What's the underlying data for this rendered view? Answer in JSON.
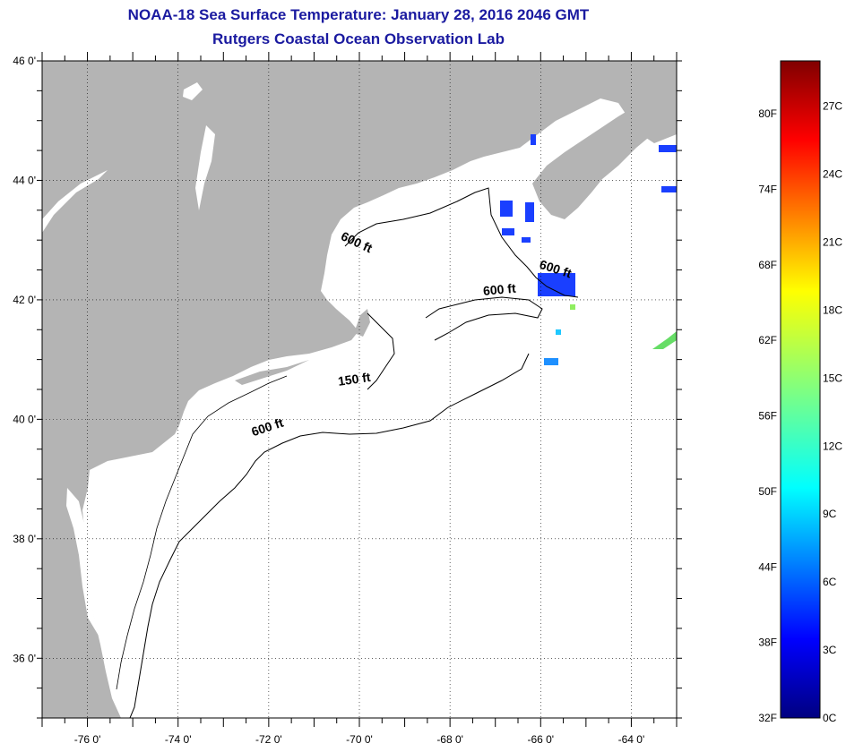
{
  "title": {
    "line1": "NOAA-18 Sea Surface Temperature:  January 28, 2016 2046 GMT",
    "line2": "Rutgers Coastal Ocean Observation Lab"
  },
  "map": {
    "lon_range": [
      -77,
      -63
    ],
    "lat_range": [
      35,
      46
    ],
    "lon_ticks": [
      {
        "value": -76,
        "label": "-76 0'"
      },
      {
        "value": -74,
        "label": "-74 0'"
      },
      {
        "value": -72,
        "label": "-72 0'"
      },
      {
        "value": -70,
        "label": "-70 0'"
      },
      {
        "value": -68,
        "label": "-68 0'"
      },
      {
        "value": -66,
        "label": "-66 0'"
      },
      {
        "value": -64,
        "label": "-64 0'"
      }
    ],
    "lat_ticks": [
      {
        "value": 46,
        "label": "46 0'"
      },
      {
        "value": 44,
        "label": "44 0'"
      },
      {
        "value": 42,
        "label": "42 0'"
      },
      {
        "value": 40,
        "label": "40 0'"
      },
      {
        "value": 38,
        "label": "38 0'"
      },
      {
        "value": 36,
        "label": "36 0'"
      }
    ],
    "grid": "dotted",
    "land_color": "#b4b4b4",
    "contour_labels": [
      {
        "text": "600 ft",
        "lon": -70.1,
        "lat": 42.9
      },
      {
        "text": "600 ft",
        "lon": -65.7,
        "lat": 42.45
      },
      {
        "text": "600 ft",
        "lon": -66.9,
        "lat": 42.1
      },
      {
        "text": "150 ft",
        "lon": -70.1,
        "lat": 40.6
      },
      {
        "text": "600 ft",
        "lon": -72.0,
        "lat": 39.8
      }
    ]
  },
  "colorbar": {
    "fahrenheit_labels": [
      "80F",
      "74F",
      "68F",
      "62F",
      "56F",
      "50F",
      "44F",
      "38F",
      "32F"
    ],
    "celsius_labels": [
      "27C",
      "24C",
      "21C",
      "18C",
      "15C",
      "12C",
      "9C",
      "6C",
      "3C",
      "0C"
    ],
    "range_c": [
      0,
      29
    ]
  }
}
